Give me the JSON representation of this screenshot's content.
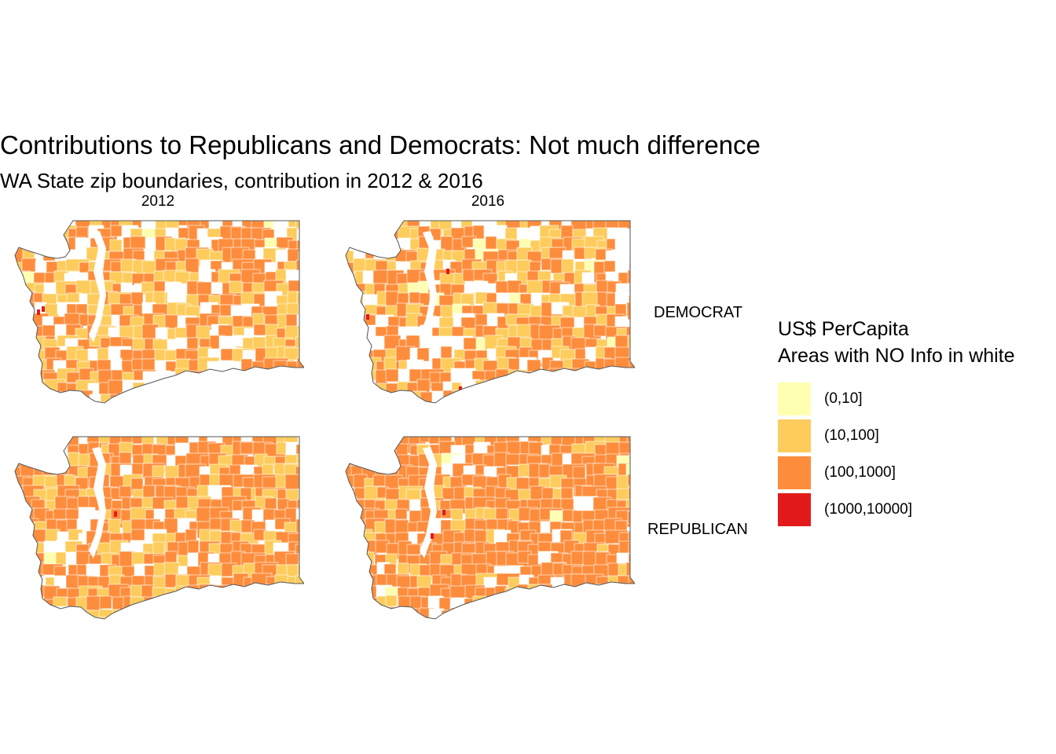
{
  "title": "Contributions to Republicans and Democrats: Not much difference",
  "subtitle": "WA State zip boundaries, contribution in 2012 & 2016",
  "facets": {
    "columns": [
      "2012",
      "2016"
    ],
    "rows": [
      "DEMOCRAT",
      "REPUBLICAN"
    ]
  },
  "legend": {
    "title_line1": "US$ PerCapita",
    "title_line2": "Areas with NO Info in white",
    "items": [
      {
        "label": "(0,10]",
        "color": "#FFFFB2"
      },
      {
        "label": "(10,100]",
        "color": "#FECC5C"
      },
      {
        "label": "(100,1000]",
        "color": "#FD8D3C"
      },
      {
        "label": "(1000,10000]",
        "color": "#E31A1C"
      }
    ]
  },
  "colors": {
    "no_info": "#FFFFFF",
    "outline": "#555555"
  }
}
